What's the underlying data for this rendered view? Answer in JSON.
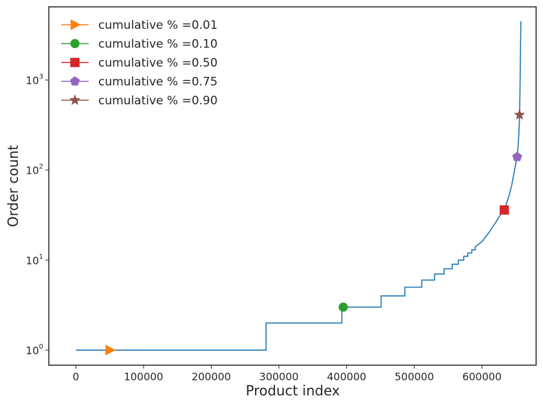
{
  "chart_data": {
    "type": "line",
    "xlabel": "Product index",
    "ylabel": "Order count",
    "xlim": [
      -40000,
      680000
    ],
    "ylim": [
      0.68,
      6500
    ],
    "y_scale": "log",
    "grid": false,
    "legend_placement": "top-left",
    "x_ticks": [
      {
        "value": 0,
        "label": "0"
      },
      {
        "value": 100000,
        "label": "100000"
      },
      {
        "value": 200000,
        "label": "200000"
      },
      {
        "value": 300000,
        "label": "300000"
      },
      {
        "value": 400000,
        "label": "400000"
      },
      {
        "value": 500000,
        "label": "500000"
      },
      {
        "value": 600000,
        "label": "600000"
      }
    ],
    "y_ticks": [
      {
        "value": 1,
        "base": "10",
        "exp": "0"
      },
      {
        "value": 10,
        "base": "10",
        "exp": "1"
      },
      {
        "value": 100,
        "base": "10",
        "exp": "2"
      },
      {
        "value": 1000,
        "base": "10",
        "exp": "3"
      }
    ],
    "series": [
      {
        "color": "#1f77b4",
        "points": [
          [
            0,
            1
          ],
          [
            281000,
            1
          ],
          [
            281000,
            2
          ],
          [
            393000,
            2
          ],
          [
            393000,
            3
          ],
          [
            451000,
            3
          ],
          [
            451000,
            4
          ],
          [
            486000,
            4
          ],
          [
            486000,
            5
          ],
          [
            511000,
            5
          ],
          [
            511000,
            6
          ],
          [
            530000,
            6
          ],
          [
            530000,
            7
          ],
          [
            544000,
            7
          ],
          [
            544000,
            8
          ],
          [
            556000,
            8
          ],
          [
            556000,
            9
          ],
          [
            565000,
            9
          ],
          [
            565000,
            10
          ],
          [
            573000,
            10
          ],
          [
            573000,
            11
          ],
          [
            579000,
            11
          ],
          [
            579000,
            12
          ],
          [
            585000,
            12
          ],
          [
            585000,
            13
          ],
          [
            590000,
            13
          ],
          [
            590000,
            14
          ],
          [
            595000,
            15
          ],
          [
            600000,
            16
          ],
          [
            605000,
            18
          ],
          [
            610000,
            20
          ],
          [
            615000,
            23
          ],
          [
            620000,
            26
          ],
          [
            625000,
            30
          ],
          [
            630000,
            34
          ],
          [
            633000,
            36
          ],
          [
            636000,
            42
          ],
          [
            640000,
            52
          ],
          [
            644000,
            68
          ],
          [
            647000,
            90
          ],
          [
            650000,
            118
          ],
          [
            652000,
            140
          ],
          [
            653500,
            190
          ],
          [
            654500,
            250
          ],
          [
            655500,
            400
          ],
          [
            656000,
            650
          ],
          [
            656500,
            1200
          ],
          [
            657000,
            2500
          ],
          [
            657500,
            4500
          ]
        ]
      },
      {
        "name": "cumulative % =0.01",
        "color": "#ff7f0e",
        "marker": "triangle-right",
        "points": [
          [
            50000,
            1
          ]
        ]
      },
      {
        "name": "cumulative % =0.10",
        "color": "#2ca02c",
        "marker": "circle",
        "points": [
          [
            395000,
            3
          ]
        ]
      },
      {
        "name": "cumulative % =0.50",
        "color": "#d62728",
        "marker": "square",
        "points": [
          [
            633000,
            36
          ]
        ]
      },
      {
        "name": "cumulative % =0.75",
        "color": "#9467bd",
        "marker": "pentagon",
        "points": [
          [
            652000,
            140
          ]
        ]
      },
      {
        "name": "cumulative % =0.90",
        "color": "#8c564b",
        "marker": "star",
        "points": [
          [
            655500,
            410
          ]
        ]
      }
    ]
  }
}
